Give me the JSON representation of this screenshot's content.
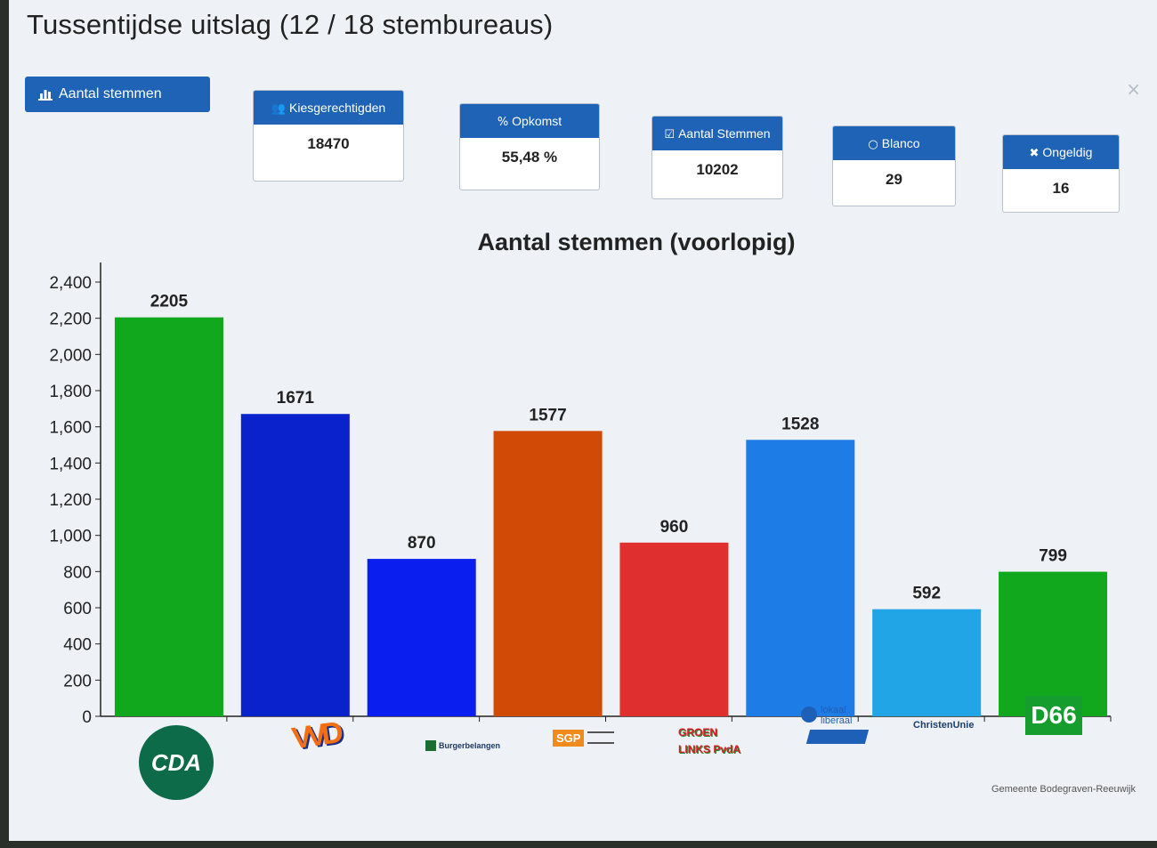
{
  "page": {
    "title": "Tussentijdse uitslag (12 / 18 stembureaus)",
    "footer": "Gemeente Bodegraven-Reeuwijk",
    "close_symbol": "×"
  },
  "main_button": {
    "label": "Aantal stemmen",
    "icon": "bar-chart-icon"
  },
  "stats": [
    {
      "label": "Kiesgerechtigden",
      "value": "18470",
      "icon": "users-icon",
      "glyph": "👥"
    },
    {
      "label": "Opkomst",
      "value": "55,48 %",
      "icon": "percent-icon",
      "glyph": "%"
    },
    {
      "label": "Aantal Stemmen",
      "value": "10202",
      "icon": "check-square-icon",
      "glyph": "☑"
    },
    {
      "label": "Blanco",
      "value": "29",
      "icon": "circle-icon",
      "glyph": "○"
    },
    {
      "label": "Ongeldig",
      "value": "16",
      "icon": "x-icon",
      "glyph": "✖"
    }
  ],
  "parties": [
    {
      "name": "CDA",
      "logo_text": "CDA"
    },
    {
      "name": "VVD",
      "logo_text": "VVD"
    },
    {
      "name": "Burgerbelangen",
      "logo_text": "Burgerbelangen"
    },
    {
      "name": "SGP",
      "logo_text": "SGP"
    },
    {
      "name": "GroenLinks PvdA",
      "logo_text": "GROEN LINKS PvdA"
    },
    {
      "name": "Lokaal Liberaal",
      "logo_text": "lokaal liberaal"
    },
    {
      "name": "ChristenUnie",
      "logo_text": "ChristenUnie"
    },
    {
      "name": "D66",
      "logo_text": "D66"
    }
  ],
  "chart_data": {
    "type": "bar",
    "title": "Aantal stemmen (voorlopig)",
    "categories": [
      "CDA",
      "VVD",
      "Burgerbelangen",
      "SGP",
      "GroenLinks PvdA",
      "Lokaal Liberaal",
      "ChristenUnie",
      "D66"
    ],
    "values": [
      2205,
      1671,
      870,
      1577,
      960,
      1528,
      592,
      799
    ],
    "colors": [
      "#12a81e",
      "#0a22cc",
      "#0b1ef0",
      "#d14a06",
      "#e02f2f",
      "#1e7ce6",
      "#22a5e6",
      "#12a81e"
    ],
    "ylim": [
      0,
      2400
    ],
    "yticks": [
      0,
      200,
      400,
      600,
      800,
      1000,
      1200,
      1400,
      1600,
      1800,
      2000,
      2200,
      2400
    ],
    "ytick_labels": [
      "0",
      "200",
      "400",
      "600",
      "800",
      "1,000",
      "1,200",
      "1,400",
      "1,600",
      "1,800",
      "2,000",
      "2,200",
      "2,400"
    ],
    "xlabel": "",
    "ylabel": "",
    "grid": false,
    "legend": "none"
  }
}
